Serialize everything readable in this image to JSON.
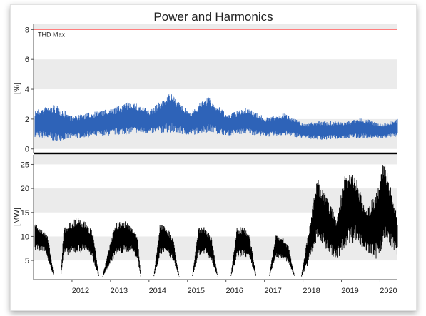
{
  "chart_data": [
    {
      "type": "line",
      "title": "Power and Harmonics",
      "ylabel": "[%]",
      "xlim": [
        "2011-01-01",
        "2020-06-15"
      ],
      "ylim": [
        -0.3,
        8.4
      ],
      "yticks": [
        0,
        2,
        4,
        6,
        8
      ],
      "grid": true,
      "legend": "none",
      "threshold": {
        "label": "THD Max",
        "value": 8,
        "color": "#ff6b6b"
      },
      "series": [
        {
          "color": "#2e63b8",
          "x": [
            "2011-01",
            "2011-07",
            "2012-01",
            "2012-07",
            "2013-01",
            "2013-07",
            "2014-01",
            "2014-07",
            "2015-01",
            "2015-07",
            "2016-01",
            "2016-07",
            "2017-01",
            "2017-07",
            "2018-01",
            "2018-07",
            "2019-01",
            "2019-07",
            "2020-01",
            "2020-06"
          ],
          "ymin": [
            0.8,
            0.5,
            0.7,
            0.8,
            0.9,
            1.0,
            1.0,
            1.1,
            0.9,
            1.1,
            0.9,
            1.0,
            0.8,
            0.9,
            0.7,
            0.6,
            0.7,
            0.7,
            0.7,
            0.8
          ],
          "ymax": [
            2.6,
            3.0,
            2.2,
            2.5,
            2.7,
            3.2,
            2.6,
            3.8,
            2.5,
            3.5,
            2.3,
            2.8,
            2.1,
            2.4,
            1.7,
            1.9,
            1.8,
            2.1,
            1.7,
            2.0
          ]
        }
      ]
    },
    {
      "type": "line",
      "ylabel": "[MW]",
      "xlim": [
        "2011-01-01",
        "2020-06-15"
      ],
      "ylim": [
        1,
        27
      ],
      "yticks": [
        5,
        10,
        15,
        20,
        25
      ],
      "xticks": [
        "2012",
        "2013",
        "2014",
        "2015",
        "2016",
        "2017",
        "2018",
        "2019",
        "2020"
      ],
      "grid": true,
      "legend": "none",
      "series": [
        {
          "color": "#000000",
          "x": [
            "2011-01",
            "2011-04",
            "2011-05",
            "2011-07",
            "2011-09",
            "2011-10",
            "2012-02",
            "2012-05",
            "2012-07",
            "2012-09",
            "2012-10",
            "2013-02",
            "2013-05",
            "2013-07",
            "2013-09",
            "2013-10",
            "2014-02",
            "2014-04",
            "2014-06",
            "2014-08",
            "2014-10",
            "2015-02",
            "2015-04",
            "2015-06",
            "2015-08",
            "2015-10",
            "2016-02",
            "2016-04",
            "2016-06",
            "2016-08",
            "2016-10",
            "2017-02",
            "2017-04",
            "2017-06",
            "2017-08",
            "2017-10",
            "2017-12",
            "2018-02",
            "2018-05",
            "2018-08",
            "2018-11",
            "2019-02",
            "2019-05",
            "2019-08",
            "2019-11",
            "2020-02",
            "2020-04",
            "2020-06"
          ],
          "ymin": [
            7,
            7,
            5,
            1.5,
            1.5,
            6,
            6.5,
            7,
            5,
            1.5,
            1.5,
            6,
            6.5,
            7,
            5,
            1.5,
            1.5,
            6,
            6.5,
            5,
            1.5,
            1.5,
            6,
            6.5,
            5,
            1.5,
            1.5,
            5.5,
            6,
            5,
            1.5,
            1.5,
            5.5,
            5.5,
            4.5,
            1.5,
            1.5,
            4,
            9,
            7,
            5,
            8,
            9,
            7,
            5,
            8,
            8,
            6
          ],
          "ymax": [
            13,
            11,
            10,
            1.5,
            1.5,
            12,
            14,
            13,
            11,
            1.5,
            1.5,
            13,
            13.5,
            12,
            10,
            1.5,
            1.5,
            13,
            12,
            10,
            1.5,
            1.5,
            12,
            12,
            10,
            1.5,
            1.5,
            12,
            12,
            10,
            1.5,
            1.5,
            10.5,
            10,
            8,
            1.5,
            1.5,
            10,
            22.5,
            18,
            14,
            24,
            23,
            15,
            19,
            26,
            20,
            14
          ]
        }
      ]
    }
  ]
}
